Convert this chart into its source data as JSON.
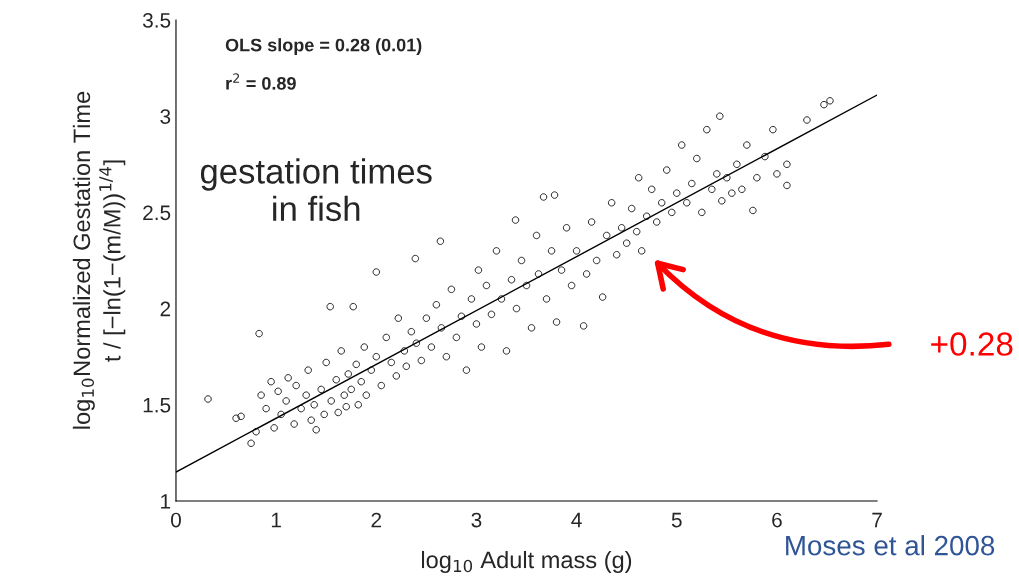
{
  "chart_data": {
    "type": "scatter",
    "xlabel": "log$_{10}$ Adult mass (g)",
    "ylabel": "log$_{10}$Normalized Gestation Time\nt / [−ln(1−(m/M))$^{1/4}$]",
    "xlim": [
      0,
      7
    ],
    "xticks": [
      0,
      1,
      2,
      3,
      4,
      5,
      6,
      7
    ],
    "ylim": [
      1,
      3.5
    ],
    "yticks": [
      1,
      1.5,
      2,
      2.5,
      3,
      3.5
    ],
    "grid": false,
    "legend": false,
    "annotations": [
      "OLS slope = 0.28 (0.01)",
      "r$^{2}$ = 0.89",
      "gestation times\nin fish",
      "+0.28",
      "Moses et al 2008"
    ],
    "series": [
      {
        "marker": "circle",
        "color": "#000000",
        "x": [
          0.32,
          0.6,
          0.65,
          0.75,
          0.8,
          0.83,
          0.85,
          0.9,
          0.95,
          0.98,
          1.02,
          1.05,
          1.1,
          1.12,
          1.18,
          1.2,
          1.25,
          1.3,
          1.32,
          1.35,
          1.38,
          1.4,
          1.45,
          1.48,
          1.5,
          1.54,
          1.55,
          1.6,
          1.62,
          1.65,
          1.68,
          1.7,
          1.72,
          1.75,
          1.77,
          1.8,
          1.82,
          1.85,
          1.88,
          1.9,
          1.95,
          2.0,
          2.0,
          2.05,
          2.1,
          2.15,
          2.2,
          2.22,
          2.28,
          2.3,
          2.35,
          2.39,
          2.4,
          2.45,
          2.5,
          2.55,
          2.6,
          2.64,
          2.65,
          2.7,
          2.75,
          2.8,
          2.85,
          2.9,
          2.95,
          3.0,
          3.02,
          3.05,
          3.1,
          3.15,
          3.2,
          3.25,
          3.3,
          3.35,
          3.39,
          3.4,
          3.45,
          3.5,
          3.55,
          3.6,
          3.62,
          3.67,
          3.7,
          3.75,
          3.78,
          3.8,
          3.85,
          3.9,
          3.95,
          4.0,
          4.07,
          4.1,
          4.15,
          4.2,
          4.26,
          4.3,
          4.35,
          4.4,
          4.45,
          4.5,
          4.55,
          4.6,
          4.62,
          4.65,
          4.7,
          4.75,
          4.8,
          4.85,
          4.9,
          4.95,
          5.0,
          5.05,
          5.1,
          5.15,
          5.2,
          5.25,
          5.3,
          5.35,
          5.4,
          5.43,
          5.45,
          5.5,
          5.55,
          5.6,
          5.65,
          5.7,
          5.76,
          5.8,
          5.88,
          5.96,
          6.0,
          6.1,
          6.1,
          6.3,
          6.47,
          6.53
        ],
        "values": [
          1.53,
          1.43,
          1.44,
          1.3,
          1.36,
          1.87,
          1.55,
          1.48,
          1.62,
          1.38,
          1.57,
          1.45,
          1.52,
          1.64,
          1.4,
          1.6,
          1.48,
          1.55,
          1.68,
          1.42,
          1.5,
          1.37,
          1.58,
          1.45,
          1.72,
          2.01,
          1.52,
          1.63,
          1.46,
          1.78,
          1.55,
          1.49,
          1.66,
          1.58,
          2.01,
          1.71,
          1.5,
          1.62,
          1.8,
          1.55,
          1.68,
          2.19,
          1.75,
          1.6,
          1.85,
          1.72,
          1.65,
          1.95,
          1.78,
          1.7,
          1.88,
          2.26,
          1.82,
          1.73,
          1.95,
          1.8,
          2.02,
          2.35,
          1.9,
          1.75,
          2.1,
          1.85,
          1.96,
          1.68,
          2.05,
          1.92,
          2.2,
          1.8,
          2.12,
          1.97,
          2.3,
          2.05,
          1.78,
          2.15,
          2.46,
          2.0,
          2.25,
          2.12,
          1.9,
          2.38,
          2.18,
          2.58,
          2.05,
          2.3,
          2.59,
          1.93,
          2.2,
          2.42,
          2.12,
          2.3,
          1.91,
          2.18,
          2.45,
          2.25,
          2.06,
          2.38,
          2.55,
          2.28,
          2.42,
          2.34,
          2.52,
          2.4,
          2.68,
          2.3,
          2.48,
          2.62,
          2.45,
          2.55,
          2.72,
          2.5,
          2.6,
          2.85,
          2.55,
          2.65,
          2.78,
          2.5,
          2.93,
          2.62,
          2.7,
          3.0,
          2.56,
          2.68,
          2.6,
          2.75,
          2.62,
          2.85,
          2.51,
          2.68,
          2.79,
          2.93,
          2.7,
          2.64,
          2.75,
          2.98,
          3.06,
          3.08
        ]
      },
      {
        "type": "line",
        "marker": "none",
        "line_style": "solid",
        "color": "#000000",
        "x": [
          0,
          7
        ],
        "values": [
          1.15,
          3.11
        ]
      }
    ]
  }
}
